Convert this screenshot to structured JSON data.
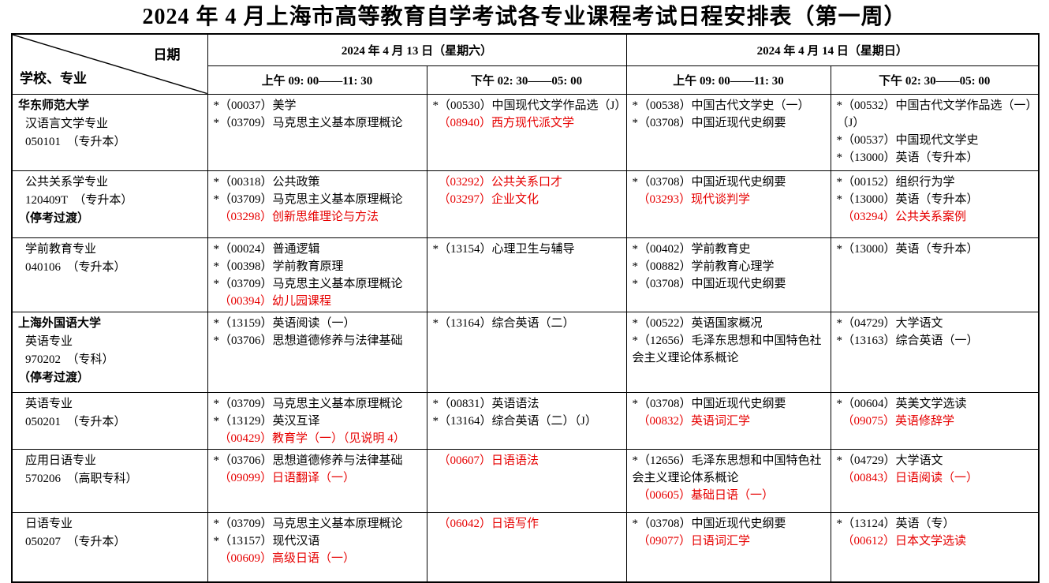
{
  "title": "2024 年 4 月上海市高等教育自学考试各专业课程考试日程安排表（第一周）",
  "colors": {
    "course_red": "#e60000",
    "text": "#000000",
    "border": "#000000"
  },
  "header": {
    "corner_top": "日期",
    "corner_bottom": "学校、专业",
    "dates": [
      "2024 年 4 月 13 日（星期六）",
      "2024 年 4 月 14 日（星期日）"
    ],
    "sessions": [
      "上午 09: 00——11: 30",
      "下午 02: 30——05: 00",
      "上午 09: 00——11: 30",
      "下午 02: 30——05: 00"
    ]
  },
  "rows": [
    {
      "school": [
        {
          "t": "华东师范大学",
          "bold": true
        },
        {
          "t": "汉语言文学专业",
          "indent": true
        },
        {
          "t": "050101　（专升本）",
          "indent": true
        }
      ],
      "cells": [
        [
          {
            "t": "*（00037）美学"
          },
          {
            "t": "*（03709）马克思主义基本原理概论"
          }
        ],
        [
          {
            "t": "*（00530）中国现代文学作品选（J）"
          },
          {
            "t": "（08940）西方现代派文学",
            "red": true
          }
        ],
        [
          {
            "t": "*（00538）中国古代文学史（一）"
          },
          {
            "t": "*（03708）中国近现代史纲要"
          }
        ],
        [
          {
            "t": "*（00532）中国古代文学作品选（一）（J）"
          },
          {
            "t": "*（00537）中国现代文学史"
          },
          {
            "t": "*（13000）英语（专升本）"
          }
        ]
      ]
    },
    {
      "school": [
        {
          "t": "公共关系学专业",
          "indent": true
        },
        {
          "t": "120409T　（专升本）",
          "indent": true
        },
        {
          "t": "（停考过渡）",
          "bold": true
        }
      ],
      "cells": [
        [
          {
            "t": "*（00318）公共政策"
          },
          {
            "t": "*（03709）马克思主义基本原理概论"
          },
          {
            "t": "（03298）创新思维理论与方法",
            "red": true
          }
        ],
        [
          {
            "t": "（03292）公共关系口才",
            "red": true
          },
          {
            "t": "（03297）企业文化",
            "red": true
          }
        ],
        [
          {
            "t": "*（03708）中国近现代史纲要"
          },
          {
            "t": "（03293）现代谈判学",
            "red": true
          }
        ],
        [
          {
            "t": "*（00152）组织行为学"
          },
          {
            "t": "*（13000）英语（专升本）"
          },
          {
            "t": "（03294）公共关系案例",
            "red": true
          }
        ]
      ]
    },
    {
      "school": [
        {
          "t": "学前教育专业",
          "indent": true
        },
        {
          "t": "040106　（专升本）",
          "indent": true
        }
      ],
      "cells": [
        [
          {
            "t": "*（00024）普通逻辑"
          },
          {
            "t": "*（00398）学前教育原理"
          },
          {
            "t": "*（03709）马克思主义基本原理概论"
          },
          {
            "t": "（00394）幼儿园课程",
            "red": true
          }
        ],
        [
          {
            "t": "*（13154）心理卫生与辅导"
          }
        ],
        [
          {
            "t": "*（00402）学前教育史"
          },
          {
            "t": "*（00882）学前教育心理学"
          },
          {
            "t": "*（03708）中国近现代史纲要"
          }
        ],
        [
          {
            "t": "*（13000）英语（专升本）"
          }
        ]
      ]
    },
    {
      "school": [
        {
          "t": "上海外国语大学",
          "bold": true
        },
        {
          "t": "英语专业",
          "indent": true
        },
        {
          "t": "970202　（专科）",
          "indent": true
        },
        {
          "t": "（停考过渡）",
          "bold": true
        }
      ],
      "cells": [
        [
          {
            "t": "*（13159）英语阅读（一）"
          },
          {
            "t": "*（03706）思想道德修养与法律基础"
          }
        ],
        [
          {
            "t": "*（13164）综合英语（二）"
          }
        ],
        [
          {
            "t": "*（00522）英语国家概况"
          },
          {
            "t": "*（12656）毛泽东思想和中国特色社会主义理论体系概论"
          }
        ],
        [
          {
            "t": "*（04729）大学语文"
          },
          {
            "t": "*（13163）综合英语（一）"
          }
        ]
      ]
    },
    {
      "school": [
        {
          "t": "英语专业",
          "indent": true
        },
        {
          "t": "050201　（专升本）",
          "indent": true
        }
      ],
      "cells": [
        [
          {
            "t": "*（03709）马克思主义基本原理概论"
          },
          {
            "t": "*（13129）英汉互译"
          },
          {
            "t": "（00429）教育学（一）（见说明 4）",
            "red": true
          }
        ],
        [
          {
            "t": "*（00831）英语语法"
          },
          {
            "t": "*（13164）综合英语（二）（J）"
          }
        ],
        [
          {
            "t": "*（03708）中国近现代史纲要"
          },
          {
            "t": "（00832）英语词汇学",
            "red": true
          }
        ],
        [
          {
            "t": "*（00604）英美文学选读"
          },
          {
            "t": "（09075）英语修辞学",
            "red": true
          }
        ]
      ]
    },
    {
      "school": [
        {
          "t": "应用日语专业",
          "indent": true
        },
        {
          "t": "570206　（高职专科）",
          "indent": true
        }
      ],
      "cells": [
        [
          {
            "t": "*（03706）思想道德修养与法律基础"
          },
          {
            "t": "（09099）日语翻译（一）",
            "red": true
          }
        ],
        [
          {
            "t": "（00607）日语语法",
            "red": true
          }
        ],
        [
          {
            "t": "*（12656）毛泽东思想和中国特色社会主义理论体系概论"
          },
          {
            "t": "（00605）基础日语（一）",
            "red": true
          }
        ],
        [
          {
            "t": "*（04729）大学语文"
          },
          {
            "t": "（00843）日语阅读（一）",
            "red": true
          }
        ]
      ]
    },
    {
      "school": [
        {
          "t": "日语专业",
          "indent": true
        },
        {
          "t": "050207　（专升本）",
          "indent": true
        }
      ],
      "cells": [
        [
          {
            "t": "*（03709）马克思主义基本原理概论"
          },
          {
            "t": "*（13157）现代汉语"
          },
          {
            "t": "（00609）高级日语（一）",
            "red": true
          }
        ],
        [
          {
            "t": "（06042）日语写作",
            "red": true
          }
        ],
        [
          {
            "t": "*（03708）中国近现代史纲要"
          },
          {
            "t": "（09077）日语词汇学",
            "red": true
          }
        ],
        [
          {
            "t": "*（13124）英语（专）"
          },
          {
            "t": "（00612）日本文学选读",
            "red": true
          }
        ]
      ]
    }
  ]
}
